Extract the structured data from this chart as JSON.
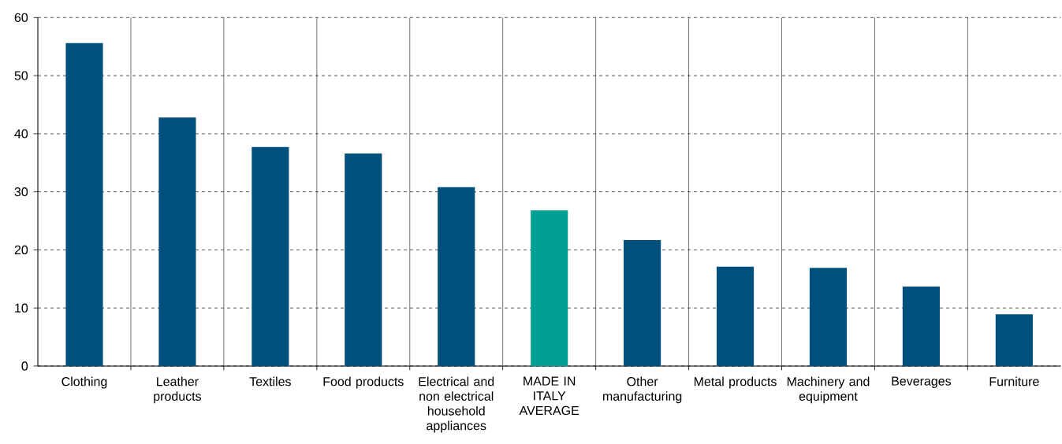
{
  "chart_data": {
    "type": "bar",
    "categories": [
      "Clothing",
      "Leather products",
      "Textiles",
      "Food products",
      "Electrical and non electrical household appliances",
      "MADE IN ITALY AVERAGE",
      "Other manufacturing",
      "Metal products",
      "Machinery and equipment",
      "Beverages",
      "Furniture"
    ],
    "values": [
      55.6,
      42.8,
      37.7,
      36.6,
      30.8,
      26.8,
      21.7,
      17.1,
      16.9,
      13.7,
      8.9
    ],
    "colors": [
      "#00507d",
      "#00507d",
      "#00507d",
      "#00507d",
      "#00507d",
      "#00a096",
      "#00507d",
      "#00507d",
      "#00507d",
      "#00507d",
      "#00507d"
    ],
    "ylim": [
      0,
      60
    ],
    "yticks": [
      0,
      10,
      20,
      30,
      40,
      50,
      60
    ],
    "grid": true
  }
}
